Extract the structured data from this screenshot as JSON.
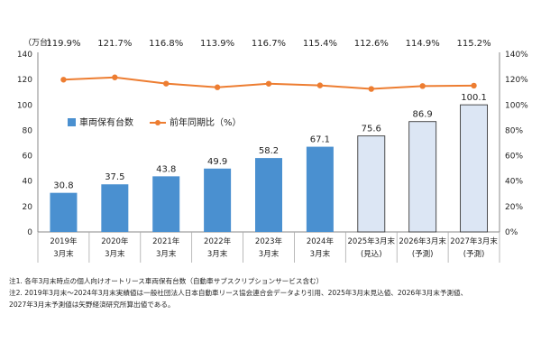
{
  "chart_data": {
    "type": "bar",
    "ylabel": "（万台）",
    "ylim": [
      0,
      140
    ],
    "y_ticks": [
      0,
      20,
      40,
      60,
      80,
      100,
      120,
      140
    ],
    "y2lim": [
      0,
      140
    ],
    "y2_ticks": [
      "0%",
      "20%",
      "40%",
      "60%",
      "80%",
      "100%",
      "120%",
      "140%"
    ],
    "categories": [
      [
        "2019年",
        "3月末"
      ],
      [
        "2020年",
        "3月末"
      ],
      [
        "2021年",
        "3月末"
      ],
      [
        "2022年",
        "3月末"
      ],
      [
        "2023年",
        "3月末"
      ],
      [
        "2024年",
        "3月末"
      ],
      [
        "2025年3月末",
        "(見込)"
      ],
      [
        "2026年3月末",
        "(予測)"
      ],
      [
        "2027年3月末",
        "(予測)"
      ]
    ],
    "series": [
      {
        "name": "車両保有台数",
        "kind": "bar",
        "values": [
          30.8,
          37.5,
          43.8,
          49.9,
          58.2,
          67.1,
          75.6,
          86.9,
          100.1
        ],
        "labels": [
          "30.8",
          "37.5",
          "43.8",
          "49.9",
          "58.2",
          "67.1",
          "75.6",
          "86.9",
          "100.1"
        ],
        "forecast": [
          false,
          false,
          false,
          false,
          false,
          false,
          true,
          true,
          true
        ]
      },
      {
        "name": "前年同期比（%）",
        "kind": "line",
        "axis": "right",
        "values": [
          119.9,
          121.7,
          116.8,
          113.9,
          116.7,
          115.4,
          112.6,
          114.9,
          115.2
        ],
        "labels": [
          "119.9%",
          "121.7%",
          "116.8%",
          "113.9%",
          "116.7%",
          "115.4%",
          "112.6%",
          "114.9%",
          "115.2%"
        ]
      }
    ],
    "legend_position": "inside-left",
    "colors": {
      "bar": "#4a90d0",
      "bar_forecast": "#dce6f4",
      "bar_forecast_border": "#3a3a3a",
      "line": "#ed7d31",
      "axis": "#888888"
    }
  },
  "notes": [
    "注1.  各年3月末時点の個人向けオートリース車両保有台数（自動車サブスクリプションサービス含む）",
    "注2.  2019年3月末～2024年3月末実績値は一般社団法人日本自動車リース協会連合会データより引用、2025年3月末見込値、2026年3月末予測値、",
    "2027年3月末予測値は矢野経済研究所算出値である。"
  ]
}
